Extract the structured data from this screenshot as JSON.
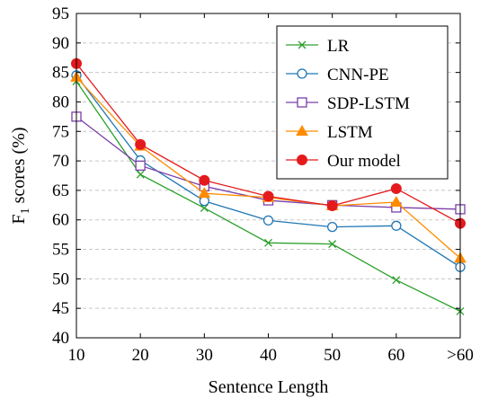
{
  "chart_data": {
    "type": "line",
    "categories": [
      "10",
      "20",
      "30",
      "40",
      "50",
      "60",
      ">60"
    ],
    "xlabel": "Sentence Length",
    "ylabel_main": "F",
    "ylabel_sub": "1",
    "ylabel_rest": " scores (%)",
    "ylim": [
      40,
      95
    ],
    "yticks": [
      40,
      45,
      50,
      55,
      60,
      65,
      70,
      75,
      80,
      85,
      90,
      95
    ],
    "grid": "horizontal dashed",
    "legend_position": "top-right",
    "series": [
      {
        "name": "LR",
        "color": "#2ca02c",
        "marker": "x",
        "values": [
          83.5,
          67.7,
          62.0,
          56.1,
          55.9,
          49.8,
          44.5
        ]
      },
      {
        "name": "CNN-PE",
        "color": "#1f77b4",
        "marker": "circle-open",
        "values": [
          84.5,
          70.1,
          63.2,
          59.9,
          58.8,
          59.0,
          52.0
        ]
      },
      {
        "name": "SDP-LSTM",
        "color": "#7b3fa8",
        "marker": "square-open",
        "values": [
          77.5,
          69.2,
          65.7,
          63.3,
          62.5,
          62.1,
          61.8
        ]
      },
      {
        "name": "LSTM",
        "color": "#ff8c00",
        "marker": "triangle",
        "values": [
          84.2,
          72.5,
          64.5,
          63.8,
          62.4,
          63.0,
          53.5
        ]
      },
      {
        "name": "Our model",
        "color": "#e41a1c",
        "marker": "circle-filled",
        "values": [
          86.5,
          72.8,
          66.7,
          64.0,
          62.4,
          65.3,
          59.4
        ]
      }
    ]
  }
}
